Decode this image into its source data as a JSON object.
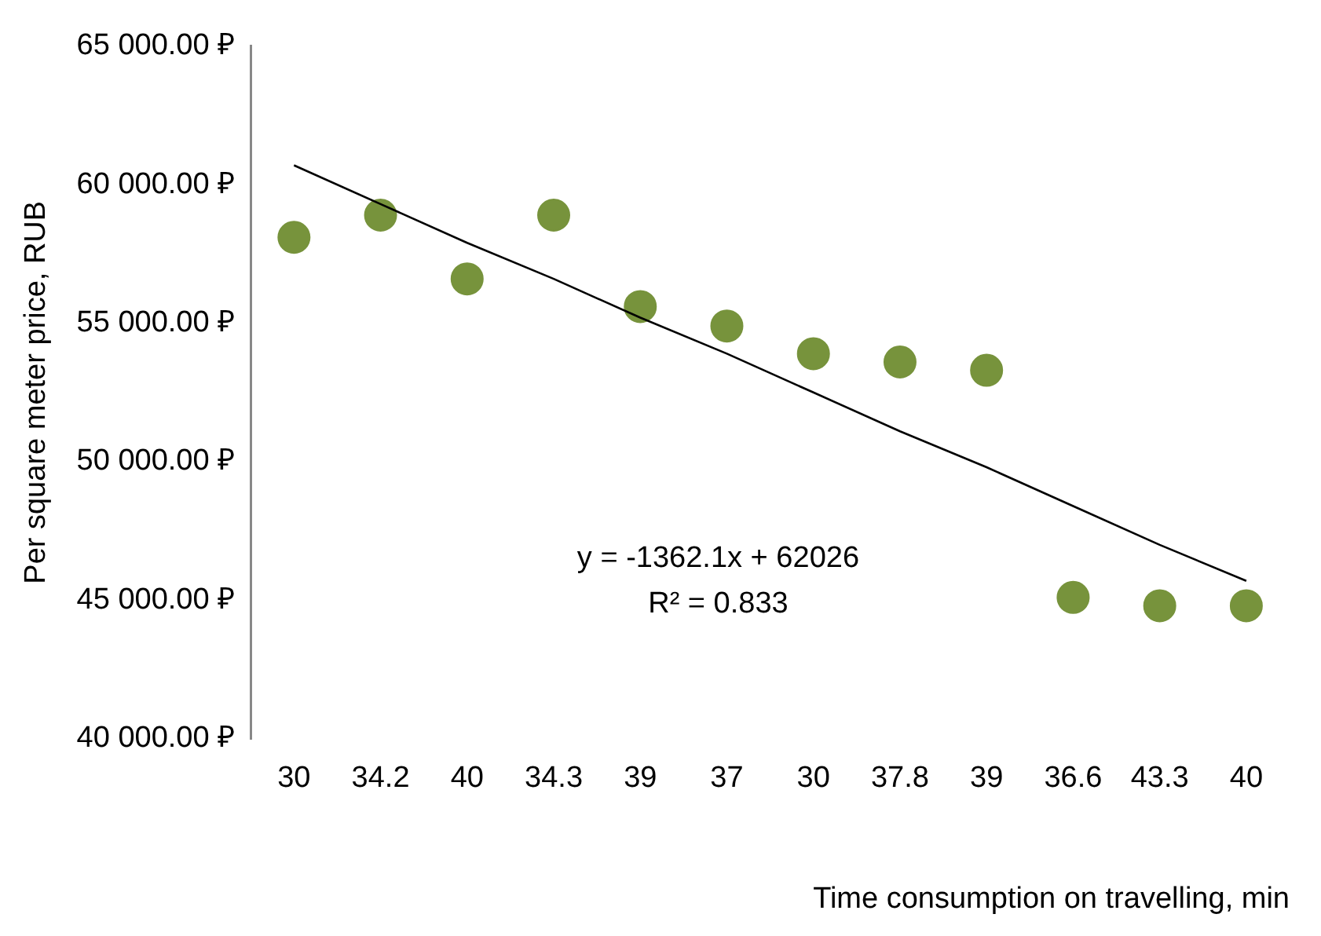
{
  "chart_data": {
    "type": "scatter",
    "categories": [
      "30",
      "34.2",
      "40",
      "34.3",
      "39",
      "37",
      "30",
      "37.8",
      "39",
      "36.6",
      "43.3",
      "40"
    ],
    "xlabel": "Time consumption on travelling, min",
    "ylabel": "Per square meter price, RUB",
    "series": [
      {
        "color": "#77933c",
        "values": [
          58100,
          58900,
          56600,
          58900,
          55600,
          54900,
          53900,
          53600,
          53300,
          45100,
          44800,
          44800
        ]
      },
      {
        "type": "line",
        "color": "#000000",
        "marker": "none",
        "values": [
          60700,
          59300,
          57900,
          56600,
          55200,
          53900,
          52500,
          51100,
          49800,
          48400,
          47000,
          45700
        ]
      }
    ],
    "ylim": [
      40000,
      65000
    ],
    "yticks": [
      {
        "value": 40000,
        "label": "40 000.00 ₽"
      },
      {
        "value": 45000,
        "label": "45 000.00 ₽"
      },
      {
        "value": 50000,
        "label": "50 000.00 ₽"
      },
      {
        "value": 55000,
        "label": "55 000.00 ₽"
      },
      {
        "value": 60000,
        "label": "60 000.00 ₽"
      },
      {
        "value": 65000,
        "label": "65 000.00 ₽"
      }
    ],
    "annotations": [
      "y = -1362.1x + 62026",
      "R² = 0.833"
    ],
    "marker": "circle",
    "grid": false,
    "legend": false
  }
}
